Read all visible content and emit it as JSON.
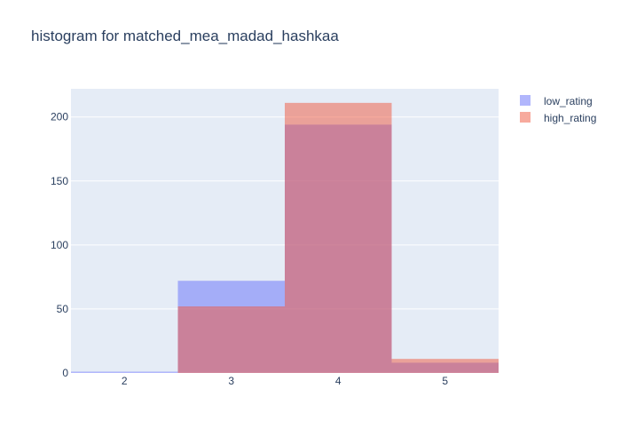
{
  "chart_data": {
    "type": "bar",
    "title": "histogram for matched_mea_madad_hashkaa",
    "xlabel": "",
    "ylabel": "",
    "barmode": "overlay",
    "categories": [
      "2",
      "3",
      "4",
      "5"
    ],
    "series": [
      {
        "name": "low_rating",
        "values": [
          1,
          72,
          194,
          8
        ],
        "color": "#636efa",
        "opacity": 0.5
      },
      {
        "name": "high_rating",
        "values": [
          0,
          52,
          211,
          11
        ],
        "color": "#ef553b",
        "opacity": 0.5
      }
    ],
    "xlim": [
      1.5,
      5.5
    ],
    "ylim": [
      0,
      222
    ],
    "yticks": [
      0,
      50,
      100,
      150,
      200
    ],
    "xticks": [
      2,
      3,
      4,
      5
    ],
    "grid": true,
    "plot_bgcolor": "#e5ecf6",
    "legend": "top-right"
  }
}
